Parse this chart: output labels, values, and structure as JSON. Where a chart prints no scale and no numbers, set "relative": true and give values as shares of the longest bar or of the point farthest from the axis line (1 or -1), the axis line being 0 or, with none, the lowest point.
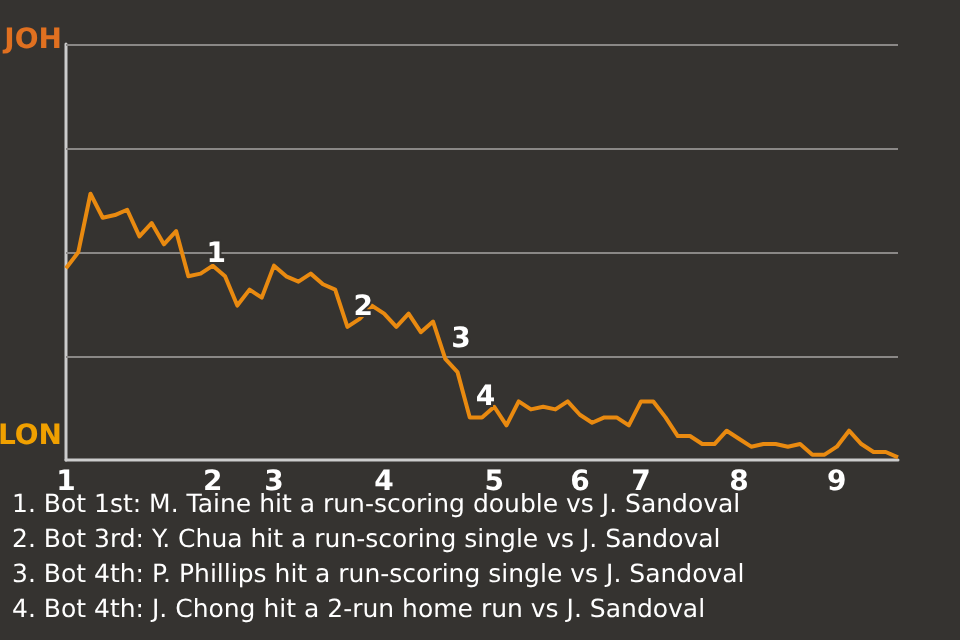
{
  "chart_data": {
    "type": "line",
    "relative": true,
    "categories": [
      "1",
      null,
      null,
      null,
      null,
      null,
      null,
      null,
      null,
      null,
      null,
      null,
      "2",
      null,
      null,
      null,
      null,
      "3",
      null,
      null,
      null,
      null,
      null,
      null,
      null,
      null,
      "4",
      null,
      null,
      null,
      null,
      null,
      null,
      null,
      null,
      "5",
      null,
      null,
      null,
      null,
      null,
      null,
      "6",
      null,
      null,
      null,
      null,
      "7",
      null,
      null,
      null,
      null,
      null,
      null,
      null,
      "8",
      null,
      null,
      null,
      null,
      null,
      null,
      null,
      "9",
      null,
      null,
      null,
      null,
      null
    ],
    "series": [
      {
        "color": "#e98a10",
        "values": [
          0.72,
          0.78,
          1,
          0.91,
          0.92,
          0.94,
          0.84,
          0.89,
          0.81,
          0.86,
          0.69,
          0.7,
          0.73,
          0.69,
          0.58,
          0.64,
          0.61,
          0.73,
          0.69,
          0.67,
          0.7,
          0.66,
          0.64,
          0.5,
          0.53,
          0.58,
          0.55,
          0.5,
          0.55,
          0.48,
          0.52,
          0.38,
          0.33,
          0.16,
          0.16,
          0.2,
          0.13,
          0.22,
          0.19,
          0.2,
          0.19,
          0.22,
          0.17,
          0.14,
          0.16,
          0.16,
          0.13,
          0.22,
          0.22,
          0.16,
          0.09,
          0.09,
          0.06,
          0.06,
          0.11,
          0.08,
          0.05,
          0.06,
          0.06,
          0.05,
          0.06,
          0.02,
          0.02,
          0.05,
          0.11,
          0.06,
          0.03,
          0.03,
          0.01
        ]
      }
    ],
    "ref_lines": [
      {
        "axis": "y",
        "value": 0.39,
        "color": "#8a8886"
      },
      {
        "axis": "y",
        "value": 0.78,
        "color": "#8a8886"
      },
      {
        "axis": "y",
        "value": 1.17,
        "color": "#8a8886"
      },
      {
        "axis": "y",
        "value": 1.56,
        "color": "#8a8886"
      }
    ],
    "annotations": [
      {
        "text": "1",
        "y": 0.7
      },
      {
        "text": "2",
        "y": 0.5
      },
      {
        "text": "3",
        "y": 0.38
      },
      {
        "text": "4",
        "y": 0.16
      },
      "JOH",
      "LON",
      "1. Bot 1st: M. Taine hit a run-scoring double vs J. Sandoval",
      "2. Bot 3rd: Y. Chua hit a run-scoring single vs J. Sandoval",
      "3. Bot 4th: P. Phillips hit a run-scoring single vs J. Sandoval",
      "4. Bot 4th: J. Chong hit a 2-run home run vs J. Sandoval"
    ]
  }
}
